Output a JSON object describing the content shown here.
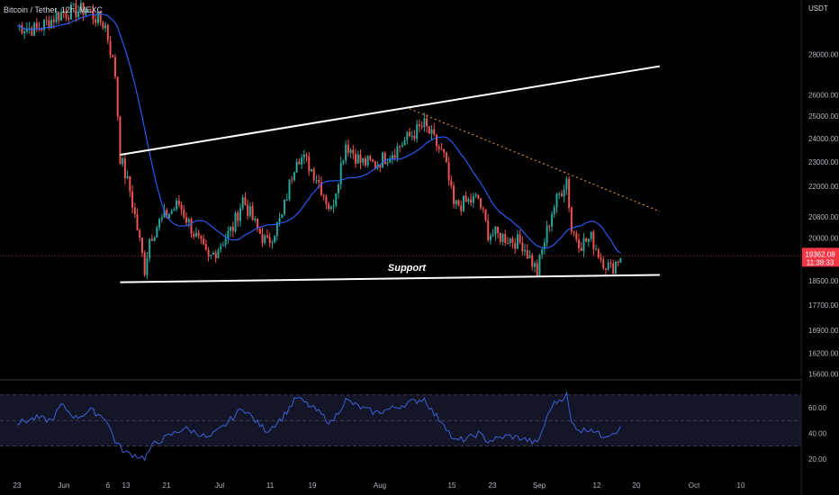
{
  "symbol_title": "Bitcoin / Tether, 12h, MEXC",
  "currency": "USDT",
  "colors": {
    "background": "#000000",
    "up": "#26a69a",
    "down": "#ef5350",
    "ma": "#2962ff",
    "rsi": "#3f5fd6",
    "axis_text": "#b2b5be",
    "price_tag": "#f23645"
  },
  "chart_data": [
    {
      "type": "candlestick",
      "price_axis": {
        "scale": "log",
        "ticks": [
          15600,
          16200,
          16900,
          17700,
          18500,
          19500,
          20000,
          20800,
          22000,
          23000,
          24000,
          25000,
          26000,
          28000
        ],
        "labels": [
          "15600.00",
          "16200.00",
          "16900.00",
          "17700.00",
          "18500.00",
          "19500.00",
          "20000.00",
          "20800.00",
          "22000.00",
          "23000.00",
          "24000.00",
          "25000.00",
          "26000.00",
          "28000.00"
        ]
      },
      "time_axis": {
        "labels": [
          "23",
          "Jun",
          "6",
          "13",
          "21",
          "Jul",
          "11",
          "19",
          "Aug",
          "15",
          "23",
          "Sep",
          "12",
          "20",
          "Oct",
          "10"
        ]
      },
      "candle_interval": "12h",
      "close_path_keypoints": [
        [
          "2022-05-23",
          29500
        ],
        [
          "2022-05-27",
          29300
        ],
        [
          "2022-06-01",
          30200
        ],
        [
          "2022-06-06",
          30400
        ],
        [
          "2022-06-10",
          29500
        ],
        [
          "2022-06-12",
          27000
        ],
        [
          "2022-06-13",
          23200
        ],
        [
          "2022-06-15",
          21800
        ],
        [
          "2022-06-18",
          18900
        ],
        [
          "2022-06-19",
          20000
        ],
        [
          "2022-06-21",
          20600
        ],
        [
          "2022-06-25",
          21300
        ],
        [
          "2022-06-28",
          20200
        ],
        [
          "2022-07-01",
          19200
        ],
        [
          "2022-07-06",
          20400
        ],
        [
          "2022-07-08",
          21500
        ],
        [
          "2022-07-11",
          20300
        ],
        [
          "2022-07-13",
          19800
        ],
        [
          "2022-07-16",
          20800
        ],
        [
          "2022-07-19",
          23300
        ],
        [
          "2022-07-21",
          23000
        ],
        [
          "2022-07-23",
          22400
        ],
        [
          "2022-07-26",
          21000
        ],
        [
          "2022-07-29",
          23800
        ],
        [
          "2022-08-01",
          23000
        ],
        [
          "2022-08-04",
          22900
        ],
        [
          "2022-08-08",
          23500
        ],
        [
          "2022-08-11",
          24100
        ],
        [
          "2022-08-14",
          24600
        ],
        [
          "2022-08-16",
          23900
        ],
        [
          "2022-08-18",
          23200
        ],
        [
          "2022-08-20",
          21200
        ],
        [
          "2022-08-25",
          21500
        ],
        [
          "2022-08-27",
          20200
        ],
        [
          "2022-08-31",
          20000
        ],
        [
          "2022-09-03",
          19800
        ],
        [
          "2022-09-06",
          18800
        ],
        [
          "2022-09-09",
          21000
        ],
        [
          "2022-09-12",
          22300
        ],
        [
          "2022-09-13",
          20300
        ],
        [
          "2022-09-15",
          19800
        ],
        [
          "2022-09-17",
          20000
        ],
        [
          "2022-09-19",
          19300
        ],
        [
          "2022-09-21",
          18900
        ],
        [
          "2022-09-23",
          19362
        ]
      ],
      "annotations": {
        "upper_channel_line": [
          [
            "2022-06-13",
            23300
          ],
          [
            "2022-10-01",
            27400
          ]
        ],
        "support_line": [
          [
            "2022-06-13",
            18450
          ],
          [
            "2022-10-01",
            18700
          ]
        ],
        "descending_trendline": [
          [
            "2022-08-11",
            25350
          ],
          [
            "2022-10-01",
            21000
          ]
        ],
        "support_label": "Support"
      },
      "last_price": {
        "value": "19362.08",
        "countdown": "11:38:33"
      }
    },
    {
      "type": "line",
      "name": "RSI",
      "y_axis": {
        "ticks": [
          20,
          40,
          60
        ],
        "labels": [
          "20.00",
          "40.00",
          "60.00"
        ]
      },
      "band": [
        30,
        70
      ],
      "midline": 50,
      "keypoints": [
        [
          "2022-05-23",
          48
        ],
        [
          "2022-05-27",
          52
        ],
        [
          "2022-05-30",
          50
        ],
        [
          "2022-06-01",
          62
        ],
        [
          "2022-06-04",
          52
        ],
        [
          "2022-06-07",
          58
        ],
        [
          "2022-06-10",
          52
        ],
        [
          "2022-06-12",
          34
        ],
        [
          "2022-06-14",
          25
        ],
        [
          "2022-06-16",
          23
        ],
        [
          "2022-06-18",
          21
        ],
        [
          "2022-06-20",
          32
        ],
        [
          "2022-06-23",
          38
        ],
        [
          "2022-06-26",
          44
        ],
        [
          "2022-06-29",
          40
        ],
        [
          "2022-07-01",
          36
        ],
        [
          "2022-07-04",
          45
        ],
        [
          "2022-07-08",
          60
        ],
        [
          "2022-07-11",
          48
        ],
        [
          "2022-07-13",
          42
        ],
        [
          "2022-07-16",
          52
        ],
        [
          "2022-07-19",
          68
        ],
        [
          "2022-07-21",
          63
        ],
        [
          "2022-07-23",
          58
        ],
        [
          "2022-07-26",
          48
        ],
        [
          "2022-07-29",
          66
        ],
        [
          "2022-08-01",
          60
        ],
        [
          "2022-08-04",
          56
        ],
        [
          "2022-08-08",
          60
        ],
        [
          "2022-08-11",
          64
        ],
        [
          "2022-08-14",
          67
        ],
        [
          "2022-08-16",
          55
        ],
        [
          "2022-08-18",
          48
        ],
        [
          "2022-08-20",
          34
        ],
        [
          "2022-08-23",
          36
        ],
        [
          "2022-08-25",
          40
        ],
        [
          "2022-08-27",
          34
        ],
        [
          "2022-08-31",
          38
        ],
        [
          "2022-09-03",
          36
        ],
        [
          "2022-09-06",
          32
        ],
        [
          "2022-09-09",
          62
        ],
        [
          "2022-09-12",
          70
        ],
        [
          "2022-09-13",
          48
        ],
        [
          "2022-09-15",
          42
        ],
        [
          "2022-09-17",
          44
        ],
        [
          "2022-09-19",
          38
        ],
        [
          "2022-09-21",
          40
        ],
        [
          "2022-09-23",
          44
        ]
      ]
    }
  ]
}
